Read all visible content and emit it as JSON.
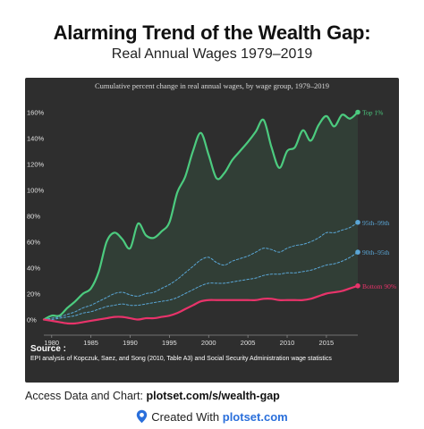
{
  "header": {
    "title": "Alarming Trend of the Wealth Gap:",
    "subtitle": "Real Annual Wages 1979–2019"
  },
  "footer": {
    "source_heading": "Source :",
    "source_text": "EPI analysis of Kopczuk, Saez, and Song (2010, Table A3) and Social Security Administration wage statistics",
    "access_label": "Access Data and Chart: ",
    "access_link": "plotset.com/s/wealth-gap",
    "created_label": "Created With ",
    "created_brand": "plotset.com"
  },
  "colors": {
    "panel_bg": "#2e2e2e",
    "top1": "#4ccb7f",
    "p95_99": "#5aa6d6",
    "p90_95": "#5aa6d6",
    "bottom90": "#e8336a",
    "axis_text": "#e0e0e0",
    "grid": "#444444",
    "brand": "#2a6fdb"
  },
  "icons": {
    "plotset_logo": "location-pin-icon"
  },
  "chart_data": {
    "type": "line",
    "title": "Cumulative percent change in real annual wages, by wage group, 1979–2019",
    "xlabel": "",
    "ylabel": "",
    "xlim": [
      1979,
      2019
    ],
    "ylim": [
      -10,
      170
    ],
    "x_ticks": [
      1980,
      1985,
      1990,
      1995,
      2000,
      2005,
      2010,
      2015
    ],
    "y_ticks": [
      0,
      20,
      40,
      60,
      80,
      100,
      120,
      140,
      160
    ],
    "y_tick_labels": [
      "0%",
      "20%",
      "40%",
      "60%",
      "80%",
      "100%",
      "120%",
      "140%",
      "160%"
    ],
    "grid": false,
    "x": [
      1979,
      1980,
      1981,
      1982,
      1983,
      1984,
      1985,
      1986,
      1987,
      1988,
      1989,
      1990,
      1991,
      1992,
      1993,
      1994,
      1995,
      1996,
      1997,
      1998,
      1999,
      2000,
      2001,
      2002,
      2003,
      2004,
      2005,
      2006,
      2007,
      2008,
      2009,
      2010,
      2011,
      2012,
      2013,
      2014,
      2015,
      2016,
      2017,
      2018,
      2019
    ],
    "series": [
      {
        "name": "Top 1%",
        "style": "solid",
        "values": [
          0,
          3,
          3,
          9,
          14,
          20,
          24,
          37,
          60,
          67,
          62,
          55,
          74,
          65,
          63,
          68,
          75,
          98,
          110,
          130,
          144,
          127,
          109,
          113,
          123,
          130,
          137,
          145,
          154,
          133,
          117,
          130,
          133,
          146,
          138,
          150,
          157,
          149,
          158,
          155,
          160
        ]
      },
      {
        "name": "95th–99th",
        "style": "dashed",
        "values": [
          0,
          1,
          2,
          4,
          6,
          9,
          11,
          14,
          17,
          20,
          21,
          19,
          18,
          20,
          21,
          24,
          27,
          31,
          36,
          41,
          46,
          48,
          44,
          42,
          45,
          47,
          49,
          52,
          55,
          54,
          52,
          55,
          57,
          58,
          60,
          63,
          67,
          67,
          69,
          71,
          75
        ]
      },
      {
        "name": "90th–95th",
        "style": "dashed",
        "values": [
          0,
          0,
          1,
          2,
          3,
          5,
          6,
          8,
          10,
          11,
          12,
          11,
          11,
          12,
          13,
          14,
          15,
          17,
          20,
          23,
          26,
          28,
          28,
          28,
          29,
          30,
          31,
          32,
          34,
          35,
          35,
          36,
          36,
          37,
          38,
          40,
          42,
          43,
          45,
          48,
          52
        ]
      },
      {
        "name": "Bottom 90%",
        "style": "solid",
        "values": [
          0,
          -1,
          -2,
          -3,
          -3,
          -2,
          -1,
          0,
          1,
          2,
          2,
          1,
          0,
          1,
          1,
          2,
          3,
          5,
          8,
          11,
          14,
          15,
          15,
          15,
          15,
          15,
          15,
          15,
          16,
          16,
          15,
          15,
          15,
          15,
          16,
          18,
          20,
          21,
          22,
          24,
          26
        ]
      }
    ]
  }
}
